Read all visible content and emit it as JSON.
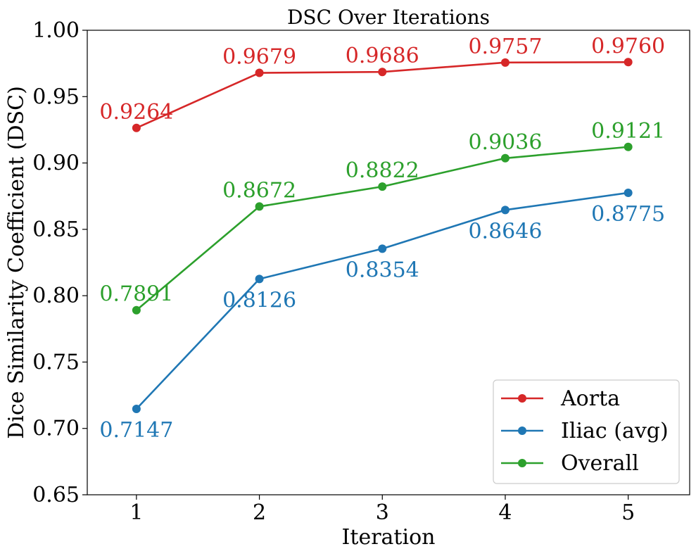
{
  "chart_data": {
    "type": "line",
    "title": "DSC Over Iterations",
    "xlabel": "Iteration",
    "ylabel": "Dice Similarity Coefficient (DSC)",
    "x": [
      1,
      2,
      3,
      4,
      5
    ],
    "xlim": [
      0.6,
      5.5
    ],
    "ylim": [
      0.65,
      1.0
    ],
    "yticks": [
      "0.65",
      "0.70",
      "0.75",
      "0.80",
      "0.85",
      "0.90",
      "0.95",
      "1.00"
    ],
    "xticks": [
      "1",
      "2",
      "3",
      "4",
      "5"
    ],
    "grid": false,
    "legend_position": "bottom-right",
    "series": [
      {
        "name": "Aorta",
        "color": "#d62728",
        "values": [
          0.9264,
          0.9679,
          0.9686,
          0.9757,
          0.976
        ],
        "labels": [
          "0.9264",
          "0.9679",
          "0.9686",
          "0.9757",
          "0.9760"
        ],
        "label_side": "above"
      },
      {
        "name": "Iliac (avg)",
        "color": "#1f77b4",
        "values": [
          0.7147,
          0.8126,
          0.8354,
          0.8646,
          0.8775
        ],
        "labels": [
          "0.7147",
          "0.8126",
          "0.8354",
          "0.8646",
          "0.8775"
        ],
        "label_side": "below"
      },
      {
        "name": "Overall",
        "color": "#2ca02c",
        "values": [
          0.7891,
          0.8672,
          0.8822,
          0.9036,
          0.9121
        ],
        "labels": [
          "0.7891",
          "0.8672",
          "0.8822",
          "0.9036",
          "0.9121"
        ],
        "label_side": "above"
      }
    ]
  }
}
